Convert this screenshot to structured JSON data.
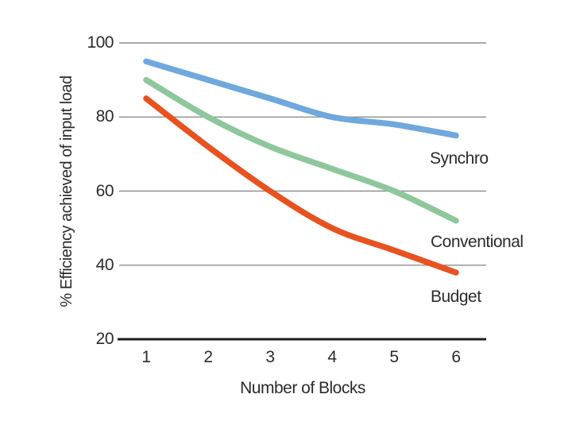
{
  "chart_data": {
    "type": "line",
    "title": "",
    "xlabel": "Number of Blocks",
    "ylabel": "% Efficiency achieved of input load",
    "categories": [
      "1",
      "2",
      "3",
      "4",
      "5",
      "6"
    ],
    "yticks": [
      100,
      80,
      60,
      40,
      20
    ],
    "ylim": [
      20,
      100
    ],
    "grid": "horizontal gridlines only, thick black baseline axis at y=20",
    "legend_position": "inline labels to the lower-right of each line end",
    "series": [
      {
        "name": "Synchro",
        "color": "#6fa8dc",
        "values": [
          95,
          90,
          85,
          80,
          78,
          75
        ]
      },
      {
        "name": "Conventional",
        "color": "#8ec79b",
        "values": [
          90,
          80,
          72,
          66,
          60,
          52
        ]
      },
      {
        "name": "Budget",
        "color": "#e8521f",
        "values": [
          85,
          72,
          60,
          50,
          44,
          38
        ]
      }
    ],
    "colors": {
      "gridline": "#8e8e8e",
      "axis": "#1f1f1f",
      "text": "#2b2b2b",
      "background": "#ffffff"
    }
  }
}
